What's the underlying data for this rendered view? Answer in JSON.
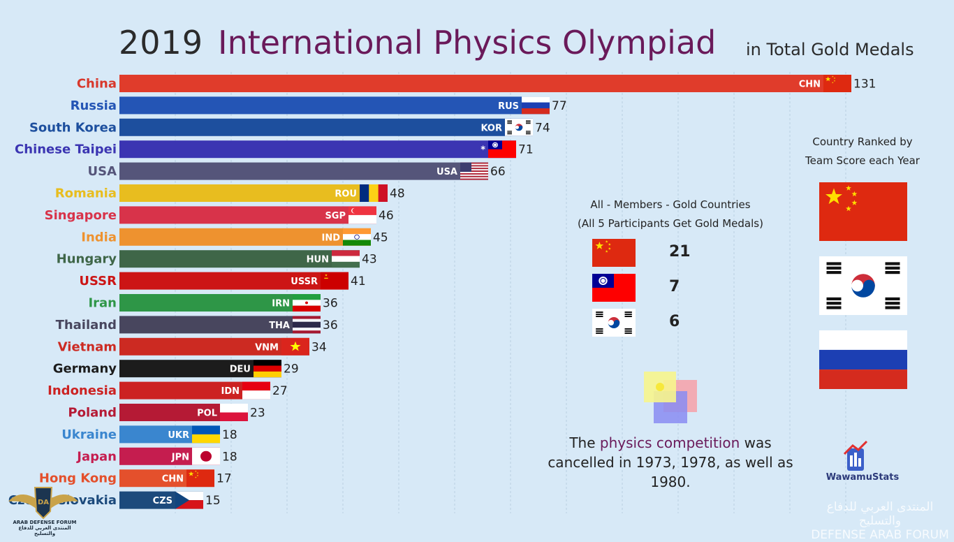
{
  "header": {
    "year": "2019",
    "title": "International Physics Olympiad",
    "subtitle": "in Total Gold Medals"
  },
  "chart_data": {
    "type": "bar",
    "orientation": "horizontal",
    "xlim": [
      0,
      135
    ],
    "bars": [
      {
        "name": "China",
        "code": "CHN",
        "value": 131,
        "color": "#e03c2b",
        "label_color": "#d8382c",
        "flag": "cn"
      },
      {
        "name": "Russia",
        "code": "RUS",
        "value": 77,
        "color": "#2455b5",
        "label_color": "#2455b5",
        "flag": "ru"
      },
      {
        "name": "South Korea",
        "code": "KOR",
        "value": 74,
        "color": "#1d4f9e",
        "label_color": "#1d4f9e",
        "flag": "kr"
      },
      {
        "name": "Chinese Taipei",
        "code": "*",
        "value": 71,
        "color": "#3b35b2",
        "label_color": "#3b35b2",
        "flag": "tw"
      },
      {
        "name": "USA",
        "code": "USA",
        "value": 66,
        "color": "#55557a",
        "label_color": "#55557a",
        "flag": "us"
      },
      {
        "name": "Romania",
        "code": "ROU",
        "value": 48,
        "color": "#e8bd1f",
        "label_color": "#e8bd1f",
        "flag": "ro"
      },
      {
        "name": "Singapore",
        "code": "SGP",
        "value": 46,
        "color": "#d8334a",
        "label_color": "#d8334a",
        "flag": "sg"
      },
      {
        "name": "India",
        "code": "IND",
        "value": 45,
        "color": "#ee922f",
        "label_color": "#ee922f",
        "flag": "in"
      },
      {
        "name": "Hungary",
        "code": "HUN",
        "value": 43,
        "color": "#3f6648",
        "label_color": "#3f6648",
        "flag": "hu"
      },
      {
        "name": "USSR",
        "code": "USSR",
        "value": 41,
        "color": "#cc1515",
        "label_color": "#cc1515",
        "flag": "su"
      },
      {
        "name": "Iran",
        "code": "IRN",
        "value": 36,
        "color": "#2e9647",
        "label_color": "#2e9647",
        "flag": "ir"
      },
      {
        "name": "Thailand",
        "code": "THA",
        "value": 36,
        "color": "#48465e",
        "label_color": "#48465e",
        "flag": "th"
      },
      {
        "name": "Vietnam",
        "code": "VNM",
        "value": 34,
        "color": "#cc2a22",
        "label_color": "#cc2a22",
        "flag": "vn"
      },
      {
        "name": "Germany",
        "code": "DEU",
        "value": 29,
        "color": "#1c1c1c",
        "label_color": "#1c1c1c",
        "flag": "de"
      },
      {
        "name": "Indonesia",
        "code": "IDN",
        "value": 27,
        "color": "#cc2222",
        "label_color": "#cc2222",
        "flag": "id"
      },
      {
        "name": "Poland",
        "code": "POL",
        "value": 23,
        "color": "#b51a35",
        "label_color": "#b51a35",
        "flag": "pl"
      },
      {
        "name": "Ukraine",
        "code": "UKR",
        "value": 18,
        "color": "#3a86cf",
        "label_color": "#3a86cf",
        "flag": "ua"
      },
      {
        "name": "Japan",
        "code": "JPN",
        "value": 18,
        "color": "#c51d4f",
        "label_color": "#c51d4f",
        "flag": "jp"
      },
      {
        "name": "Hong Kong",
        "code": "CHN",
        "value": 17,
        "color": "#e4502c",
        "label_color": "#e4502c",
        "flag": "cn"
      },
      {
        "name": "Czechoslovakia",
        "code": "CZS",
        "value": 15,
        "color": "#1c4a7c",
        "label_color": "#1c4a7c",
        "flag": "cz"
      }
    ]
  },
  "all_members": {
    "title_line1": "All - Members - Gold Countries",
    "title_line2": "(All 5 Participants Get Gold Medals)",
    "rows": [
      {
        "flag": "cn",
        "count": "21"
      },
      {
        "flag": "tw",
        "count": "7"
      },
      {
        "flag": "kr",
        "count": "6"
      }
    ]
  },
  "ranked": {
    "title_line1": "Country Ranked by",
    "title_line2": "Team Score each Year",
    "flags": [
      "cn",
      "kr",
      "ru"
    ]
  },
  "note": {
    "part1": "The ",
    "highlight": "physics competition",
    "part2": " was cancelled in 1973, 1978, as well as 1980."
  },
  "brand": {
    "name": "WawamuStats"
  },
  "watermark": {
    "forum_badge": "ARAB DEFENSE FORUM",
    "forum_arabic": "المنتدى العربي للدفاع والتسليح",
    "line1": "المنتدى العربي للدفاع والتسليح",
    "line2": "DEFENSE ARAB FORUM"
  }
}
